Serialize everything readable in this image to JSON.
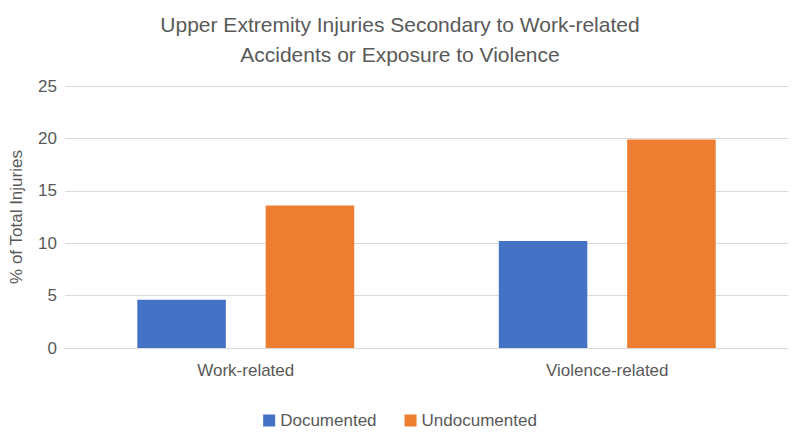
{
  "chart_data": {
    "type": "bar",
    "title": "Upper Extremity Injuries Secondary to Work-related\nAccidents or Exposure to Violence",
    "y_label": "% of Total Injuries",
    "categories": [
      "Work-related",
      "Violence-related"
    ],
    "series": [
      {
        "name": "Documented",
        "color": "#4472c4",
        "values": [
          4.6,
          10.2
        ]
      },
      {
        "name": "Undocumented",
        "color": "#ed7d31",
        "values": [
          13.6,
          19.9
        ]
      }
    ],
    "ylim": [
      0,
      25
    ],
    "yticks": [
      0,
      5,
      10,
      15,
      20,
      25
    ],
    "grid": true,
    "legend": "bottom"
  }
}
